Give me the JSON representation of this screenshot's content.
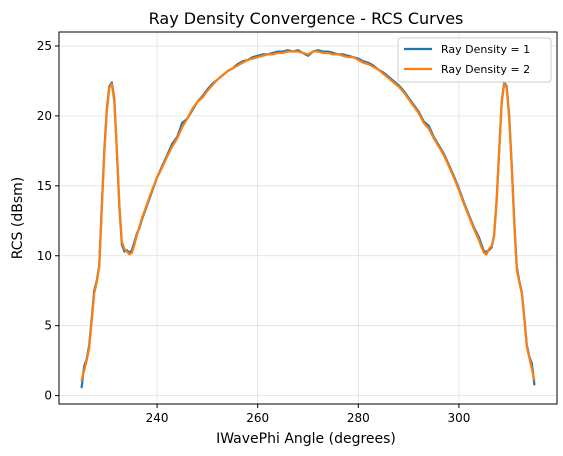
{
  "chart_data": {
    "type": "line",
    "title": "Ray Density Convergence - RCS Curves",
    "xlabel": "IWavePhi Angle (degrees)",
    "ylabel": "RCS (dBsm)",
    "xlim": [
      220.5,
      319.5
    ],
    "ylim": [
      -0.6,
      26.0
    ],
    "xticks": [
      240,
      260,
      280,
      300
    ],
    "yticks": [
      0,
      5,
      10,
      15,
      20,
      25
    ],
    "grid": true,
    "legend_position": "top-right",
    "colors": {
      "series_1": "#1f77b4",
      "series_2": "#ff7f0e"
    },
    "series": [
      {
        "name": "Ray Density = 1",
        "color": "#1f77b4",
        "points": [
          [
            225,
            0.6
          ],
          [
            225.5,
            2.1
          ],
          [
            226,
            2.6
          ],
          [
            226.5,
            3.6
          ],
          [
            227,
            5.5
          ],
          [
            227.5,
            7.5
          ],
          [
            228,
            8.2
          ],
          [
            228.5,
            9.3
          ],
          [
            229,
            13.5
          ],
          [
            229.5,
            17.5
          ],
          [
            230,
            20.5
          ],
          [
            230.5,
            22.1
          ],
          [
            231,
            22.4
          ],
          [
            231.5,
            21.2
          ],
          [
            232,
            17.5
          ],
          [
            232.5,
            13.5
          ],
          [
            233,
            10.8
          ],
          [
            233.5,
            10.3
          ],
          [
            234,
            10.4
          ],
          [
            234.5,
            10.2
          ],
          [
            235,
            10.4
          ],
          [
            235.5,
            11.0
          ],
          [
            236,
            11.6
          ],
          [
            236.5,
            12.0
          ],
          [
            237,
            12.6
          ],
          [
            238,
            13.6
          ],
          [
            239,
            14.6
          ],
          [
            240,
            15.6
          ],
          [
            241,
            16.4
          ],
          [
            242,
            17.2
          ],
          [
            243,
            18.0
          ],
          [
            244,
            18.5
          ],
          [
            245,
            19.5
          ],
          [
            246,
            19.8
          ],
          [
            247,
            20.4
          ],
          [
            248,
            21.0
          ],
          [
            249,
            21.4
          ],
          [
            250,
            21.9
          ],
          [
            251,
            22.3
          ],
          [
            252,
            22.6
          ],
          [
            253,
            22.9
          ],
          [
            254,
            23.2
          ],
          [
            255,
            23.4
          ],
          [
            256,
            23.7
          ],
          [
            257,
            23.9
          ],
          [
            258,
            24.0
          ],
          [
            259,
            24.2
          ],
          [
            260,
            24.3
          ],
          [
            261,
            24.4
          ],
          [
            262,
            24.4
          ],
          [
            263,
            24.5
          ],
          [
            264,
            24.6
          ],
          [
            265,
            24.6
          ],
          [
            266,
            24.7
          ],
          [
            267,
            24.6
          ],
          [
            268,
            24.7
          ],
          [
            269,
            24.5
          ],
          [
            270,
            24.3
          ],
          [
            271,
            24.6
          ],
          [
            272,
            24.7
          ],
          [
            273,
            24.6
          ],
          [
            274,
            24.6
          ],
          [
            275,
            24.5
          ],
          [
            276,
            24.4
          ],
          [
            277,
            24.4
          ],
          [
            278,
            24.3
          ],
          [
            279,
            24.2
          ],
          [
            280,
            24.1
          ],
          [
            281,
            23.9
          ],
          [
            282,
            23.8
          ],
          [
            283,
            23.6
          ],
          [
            284,
            23.3
          ],
          [
            285,
            23.1
          ],
          [
            286,
            22.8
          ],
          [
            287,
            22.5
          ],
          [
            288,
            22.2
          ],
          [
            289,
            21.8
          ],
          [
            290,
            21.3
          ],
          [
            291,
            20.8
          ],
          [
            292,
            20.3
          ],
          [
            293,
            19.6
          ],
          [
            294,
            19.3
          ],
          [
            295,
            18.5
          ],
          [
            296,
            17.9
          ],
          [
            297,
            17.3
          ],
          [
            298,
            16.5
          ],
          [
            299,
            15.7
          ],
          [
            300,
            14.8
          ],
          [
            301,
            13.8
          ],
          [
            302,
            12.9
          ],
          [
            303,
            12.0
          ],
          [
            304,
            11.3
          ],
          [
            304.5,
            10.8
          ],
          [
            305,
            10.3
          ],
          [
            305.5,
            10.3
          ],
          [
            306,
            10.4
          ],
          [
            306.5,
            10.6
          ],
          [
            307,
            11.5
          ],
          [
            307.5,
            14.0
          ],
          [
            308,
            17.5
          ],
          [
            308.5,
            21.0
          ],
          [
            309,
            22.4
          ],
          [
            309.5,
            22.1
          ],
          [
            310,
            20.0
          ],
          [
            310.5,
            16.5
          ],
          [
            311,
            12.5
          ],
          [
            311.5,
            9.2
          ],
          [
            312,
            8.2
          ],
          [
            312.5,
            7.4
          ],
          [
            313,
            5.6
          ],
          [
            313.5,
            3.6
          ],
          [
            314,
            2.8
          ],
          [
            314.5,
            2.3
          ],
          [
            315,
            0.8
          ]
        ]
      },
      {
        "name": "Ray Density = 2",
        "color": "#ff7f0e",
        "points": [
          [
            225,
            1.1
          ],
          [
            225.5,
            1.8
          ],
          [
            226,
            2.5
          ],
          [
            226.5,
            3.4
          ],
          [
            227,
            5.3
          ],
          [
            227.5,
            7.3
          ],
          [
            228,
            8.1
          ],
          [
            228.5,
            9.2
          ],
          [
            229,
            13.3
          ],
          [
            229.5,
            17.3
          ],
          [
            230,
            20.3
          ],
          [
            230.5,
            22.0
          ],
          [
            231,
            22.3
          ],
          [
            231.5,
            21.0
          ],
          [
            232,
            17.6
          ],
          [
            232.5,
            13.7
          ],
          [
            233,
            11.0
          ],
          [
            233.5,
            10.5
          ],
          [
            234,
            10.3
          ],
          [
            234.5,
            10.1
          ],
          [
            235,
            10.2
          ],
          [
            235.5,
            10.8
          ],
          [
            236,
            11.5
          ],
          [
            236.5,
            12.1
          ],
          [
            237,
            12.7
          ],
          [
            238,
            13.7
          ],
          [
            239,
            14.7
          ],
          [
            240,
            15.6
          ],
          [
            241,
            16.3
          ],
          [
            242,
            17.1
          ],
          [
            243,
            17.8
          ],
          [
            244,
            18.4
          ],
          [
            245,
            19.2
          ],
          [
            246,
            19.8
          ],
          [
            247,
            20.5
          ],
          [
            248,
            21.0
          ],
          [
            249,
            21.3
          ],
          [
            250,
            21.8
          ],
          [
            251,
            22.2
          ],
          [
            252,
            22.6
          ],
          [
            253,
            22.9
          ],
          [
            254,
            23.2
          ],
          [
            255,
            23.4
          ],
          [
            256,
            23.6
          ],
          [
            257,
            23.8
          ],
          [
            258,
            24.0
          ],
          [
            259,
            24.1
          ],
          [
            260,
            24.2
          ],
          [
            261,
            24.3
          ],
          [
            262,
            24.4
          ],
          [
            263,
            24.4
          ],
          [
            264,
            24.5
          ],
          [
            265,
            24.5
          ],
          [
            266,
            24.6
          ],
          [
            267,
            24.6
          ],
          [
            268,
            24.6
          ],
          [
            269,
            24.5
          ],
          [
            270,
            24.4
          ],
          [
            271,
            24.6
          ],
          [
            272,
            24.6
          ],
          [
            273,
            24.5
          ],
          [
            274,
            24.5
          ],
          [
            275,
            24.4
          ],
          [
            276,
            24.4
          ],
          [
            277,
            24.3
          ],
          [
            278,
            24.2
          ],
          [
            279,
            24.2
          ],
          [
            280,
            24.0
          ],
          [
            281,
            23.8
          ],
          [
            282,
            23.7
          ],
          [
            283,
            23.5
          ],
          [
            284,
            23.3
          ],
          [
            285,
            23.0
          ],
          [
            286,
            22.7
          ],
          [
            287,
            22.4
          ],
          [
            288,
            22.1
          ],
          [
            289,
            21.7
          ],
          [
            290,
            21.2
          ],
          [
            291,
            20.7
          ],
          [
            292,
            20.2
          ],
          [
            293,
            19.5
          ],
          [
            294,
            19.1
          ],
          [
            295,
            18.4
          ],
          [
            296,
            17.8
          ],
          [
            297,
            17.2
          ],
          [
            298,
            16.4
          ],
          [
            299,
            15.6
          ],
          [
            300,
            14.7
          ],
          [
            301,
            13.7
          ],
          [
            302,
            12.8
          ],
          [
            303,
            11.9
          ],
          [
            304,
            11.1
          ],
          [
            304.5,
            10.6
          ],
          [
            305,
            10.2
          ],
          [
            305.5,
            10.1
          ],
          [
            306,
            10.5
          ],
          [
            306.5,
            10.7
          ],
          [
            307,
            11.4
          ],
          [
            307.5,
            13.8
          ],
          [
            308,
            17.4
          ],
          [
            308.5,
            20.9
          ],
          [
            309,
            22.3
          ],
          [
            309.5,
            22.0
          ],
          [
            310,
            19.8
          ],
          [
            310.5,
            16.3
          ],
          [
            311,
            12.3
          ],
          [
            311.5,
            9.0
          ],
          [
            312,
            8.1
          ],
          [
            312.5,
            7.3
          ],
          [
            313,
            5.5
          ],
          [
            313.5,
            3.5
          ],
          [
            314,
            2.7
          ],
          [
            314.5,
            1.9
          ],
          [
            315,
            1.1
          ]
        ]
      }
    ]
  }
}
